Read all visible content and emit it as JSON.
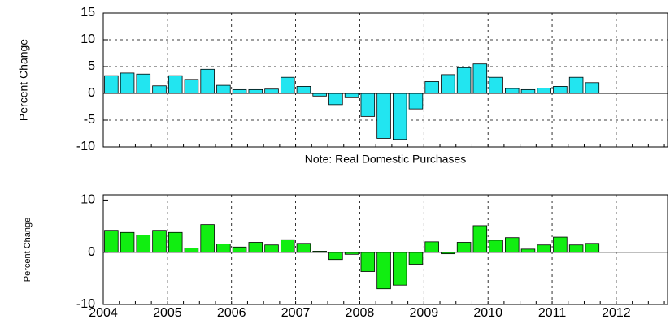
{
  "chart_data": [
    {
      "type": "bar",
      "y_label": "Percent Change",
      "annotation": "Note: Real Domestic Purchases",
      "color": "#22e5f0",
      "x": [
        2004,
        2004.25,
        2004.5,
        2004.75,
        2005,
        2005.25,
        2005.5,
        2005.75,
        2006,
        2006.25,
        2006.5,
        2006.75,
        2007,
        2007.25,
        2007.5,
        2007.75,
        2008,
        2008.25,
        2008.5,
        2008.75,
        2009,
        2009.25,
        2009.5,
        2009.75,
        2010,
        2010.25,
        2010.5,
        2010.75,
        2011,
        2011.25,
        2011.5
      ],
      "values": [
        3.3,
        3.8,
        3.6,
        1.4,
        3.3,
        2.6,
        4.5,
        1.5,
        0.7,
        0.7,
        0.8,
        3.0,
        1.3,
        -0.5,
        -2.1,
        -0.8,
        -4.3,
        -8.4,
        -8.6,
        -2.9,
        2.2,
        3.5,
        4.8,
        5.5,
        3.0,
        0.9,
        0.7,
        1.0,
        1.3,
        3.0,
        2.0
      ],
      "xlim": [
        2004,
        2012.8
      ],
      "xticks": [
        2004,
        2005,
        2006,
        2007,
        2008,
        2009,
        2010,
        2011,
        2012
      ],
      "ylim": [
        -10,
        15
      ],
      "yticks": [
        -10,
        -5,
        0,
        5,
        10,
        15
      ],
      "grid": true
    },
    {
      "type": "bar",
      "y_label": "Percent Change",
      "color": "#11ee11",
      "x": [
        2004,
        2004.25,
        2004.5,
        2004.75,
        2005,
        2005.25,
        2005.5,
        2005.75,
        2006,
        2006.25,
        2006.5,
        2006.75,
        2007,
        2007.25,
        2007.5,
        2007.75,
        2008,
        2008.25,
        2008.5,
        2008.75,
        2009,
        2009.25,
        2009.5,
        2009.75,
        2010,
        2010.25,
        2010.5,
        2010.75,
        2011,
        2011.25,
        2011.5
      ],
      "values": [
        4.2,
        3.8,
        3.3,
        4.2,
        3.8,
        0.8,
        5.3,
        1.6,
        1.0,
        1.9,
        1.4,
        2.4,
        1.7,
        0.2,
        -1.4,
        -0.4,
        -3.7,
        -7.0,
        -6.3,
        -2.3,
        2.0,
        -0.3,
        1.9,
        5.1,
        2.3,
        2.8,
        0.6,
        1.4,
        2.9,
        1.4,
        1.7
      ],
      "xlim": [
        2004,
        2012.8
      ],
      "xticks": [
        2004,
        2005,
        2006,
        2007,
        2008,
        2009,
        2010,
        2011,
        2012
      ],
      "ylim": [
        -10,
        11
      ],
      "yticks": [
        -10,
        0,
        10
      ],
      "grid": true
    }
  ]
}
